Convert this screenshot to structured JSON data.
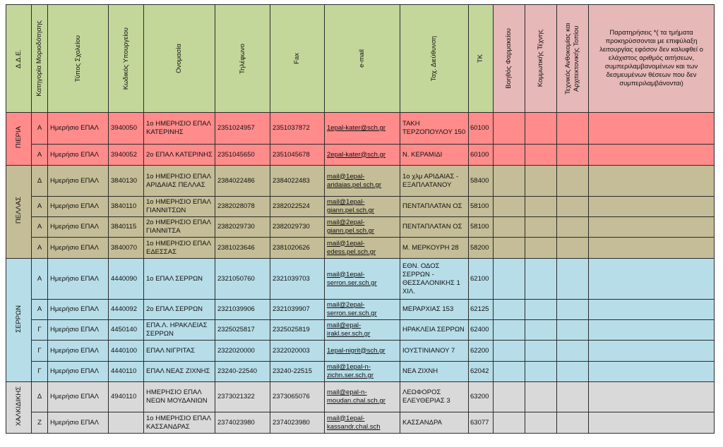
{
  "headers": {
    "dde": "Δ.Δ.Ε.",
    "category": "Κατηγορία Μοριοδότησης",
    "school_type": "Τύπος Σχολείου",
    "ministry_code": "Κωδικός Υπουργείου",
    "name": "Ονομασία",
    "phone": "Τηλέφωνο",
    "fax": "Fax",
    "email": "e-mail",
    "address": "Ταχ. Διεύθυνση",
    "tk": "ΤΚ",
    "pharmacy_assistant": "Βοηθός Φαρμακείου",
    "hair_styling": "Κομμωτικής Τέχνης",
    "landscape": "Τεχνικός Ανθοκομίας και Αρχιτεκτονικής Τοπίου",
    "remarks": "Παρατηρήσεις *( τα τμήματα προκηρύσσονται με επιφύλαξη λειτουργίας εφόσον δεν καλυφθεί ο ελάχιστος αριθμός αιτήσεων, συμπεριλαμβανομένων και των δεσμευμένων θέσεων που δεν συμπεριλαμβάνονται)"
  },
  "groups": [
    {
      "region": "ΠΙΕΡΙΑ",
      "rows": [
        {
          "category": "Α",
          "school_type": "Ημερήσιο ΕΠΑΛ",
          "code": "3940050",
          "name": "1ο ΗΜΕΡΗΣΙΟ ΕΠΑΛ ΚΑΤΕΡΙΝΗΣ",
          "phone": "2351024957",
          "fax": "2351037872",
          "email": "1epal-kater@sch.gr",
          "address": "ΤΑΚΗ ΤΕΡΖΟΠΟΥΛΟΥ 150",
          "tk": "60100"
        },
        {
          "category": "Α",
          "school_type": "Ημερήσιο ΕΠΑΛ",
          "code": "3940052",
          "name": "2ο ΕΠΑΛ ΚΑΤΕΡΙΝΗΣ",
          "phone": "2351045650",
          "fax": "2351045678",
          "email": "2epal-kater@sch.gr",
          "address": "Ν. ΚΕΡΑΜΙΔΙ",
          "tk": "60100"
        }
      ]
    },
    {
      "region": "ΠΕΛΛΑΣ",
      "rows": [
        {
          "category": "Δ",
          "school_type": "Ημερήσιο ΕΠΑΛ",
          "code": "3840130",
          "name": "1ο ΗΜΕΡΗΣΙΟ ΕΠΑΛ ΑΡΙΔΑΙΑΣ ΠΕΛΛΑΣ",
          "phone": "2384022486",
          "fax": "2384022483",
          "email": "mail@1epal-aridaias.pel.sch.gr",
          "address": "1ο χλμ ΑΡΙΔΑΙΑΣ - ΕΞΑΠΛΑΤΑΝΟΥ",
          "tk": "58400"
        },
        {
          "category": "Α",
          "school_type": "Ημερήσιο ΕΠΑΛ",
          "code": "3840110",
          "name": "1ο ΗΜΕΡΗΣΙΟ ΕΠΑΛ ΓΙΑΝΝΙΤΣΩΝ",
          "phone": "2382028078",
          "fax": "2382022524",
          "email": "mail@1epal-giann.pel.sch.gr",
          "address": "ΠΕΝΤΑΠΛΑΤΑΝ ΟΣ",
          "tk": "58100"
        },
        {
          "category": "Α",
          "school_type": "Ημερήσιο ΕΠΑΛ",
          "code": "3840115",
          "name": "2ο ΗΜΕΡΗΣΙΟ ΕΠΑΛ ΓΙΑΝΝΙΤΣΑ",
          "phone": "2382029730",
          "fax": "2382029730",
          "email": "mail@2epal-giann.pel.sch.gr",
          "address": "ΠΕΝΤΑΠΛΑΤΑΝ ΟΣ",
          "tk": "58100"
        },
        {
          "category": "Α",
          "school_type": "Ημερήσιο ΕΠΑΛ",
          "code": "3840070",
          "name": "1ο ΗΜΕΡΗΣΙΟ ΕΠΑΛ ΕΔΕΣΣΑΣ",
          "phone": "2381023646",
          "fax": "2381020626",
          "email": "mail@1epal-edess.pel.sch.gr",
          "address": "Μ. ΜΕΡΚΟΥΡΗ 28",
          "tk": "58200"
        }
      ]
    },
    {
      "region": "ΣΕΡΡΩΝ",
      "rows": [
        {
          "category": "Α",
          "school_type": "Ημερήσιο ΕΠΑΛ",
          "code": "4440090",
          "name": "1ο ΕΠΑΛ ΣΕΡΡΩΝ",
          "phone": "2321050760",
          "fax": "2321039703",
          "email": "mail@1epal-serron.ser.sch.gr",
          "address": "ΕΘΝ. ΟΔΟΣ ΣΕΡΡΩΝ - ΘΕΣΣΑΛΟΝΙΚΗΣ 1 ΧΙΛ.",
          "tk": "62100"
        },
        {
          "category": "Α",
          "school_type": "Ημερήσιο ΕΠΑΛ",
          "code": "4440092",
          "name": "2ο ΕΠΑΛ ΣΕΡΡΩΝ",
          "phone": "2321039906",
          "fax": "2321039907",
          "email": "mail@2epal-serron.ser.sch.gr",
          "address": "ΜΕΡΑΡΧΙΑΣ 153",
          "tk": "62125"
        },
        {
          "category": "Γ",
          "school_type": "Ημερήσιο ΕΠΑΛ",
          "code": "4450140",
          "name": "ΕΠΑ.Λ. ΗΡΑΚΛΕΙΑΣ ΣΕΡΡΩΝ",
          "phone": "2325025817",
          "fax": "2325025819",
          "email": "mail@epal-irakl.ser.sch.gr",
          "address": "ΗΡΑΚΛΕΙΑ ΣΕΡΡΩΝ",
          "tk": "62400"
        },
        {
          "category": "Γ",
          "school_type": "Ημερήσιο ΕΠΑΛ",
          "code": "4440100",
          "name": "ΕΠΑΛ ΝΙΓΡΙΤΑΣ",
          "phone": "2322020000",
          "fax": "2322020003",
          "email": "1epal-nigrit@sch.gr",
          "address": "ΙΟΥΣΤΙΝΙΑΝΟΥ 7",
          "tk": "62200"
        },
        {
          "category": "Γ",
          "school_type": "Ημερήσιο ΕΠΑΛ",
          "code": "4440110",
          "name": "ΕΠΑΛ ΝΕΑΣ ΖΙΧΝΗΣ",
          "phone": "23240-22540",
          "fax": "23240-22515",
          "email": "mail@1epal-n-zichn.ser.sch.gr",
          "address": "ΝΕΑ ΖΙΧΝΗ",
          "tk": "62042"
        }
      ]
    },
    {
      "region": "ΧΑΛΚΙΔΙΚΗΣ",
      "rows": [
        {
          "category": "Δ",
          "school_type": "Ημερήσιο ΕΠΑΛ",
          "code": "4940110",
          "name": "ΗΜΕΡΗΣΙΟ ΕΠΑΛ ΝΕΩΝ ΜΟΥΔΑΝΙΩΝ",
          "phone": "2373021322",
          "fax": "2373065076",
          "email": "mail@epal-n-moudan.chal.sch.gr",
          "address": "ΛΕΩΦΟΡΟΣ ΕΛΕΥΘΕΡΙΑΣ 3",
          "tk": "63200"
        },
        {
          "category": "Ζ",
          "school_type": "Ημερήσιο ΕΠΑΛ",
          "code": "",
          "name": "1ο ΗΜΕΡΗΣΙΟ ΕΠΑΛ ΚΑΣΣΑΝΔΡΑΣ",
          "phone": "2374023980",
          "fax": "2374023980",
          "email": "mail@1epal-kassandr.chal.sch",
          "address": "ΚΑΣΣΑΝΔΡΑ",
          "tk": "63077"
        }
      ]
    }
  ],
  "colors": {
    "header_green": "#c4d79b",
    "header_pink": "#e6b8b7",
    "pieria": "#ff8b8b",
    "pellas": "#c4bd97",
    "serron": "#b7dde8",
    "chalkidiki": "#d9d9d9",
    "email_link": "#1f23c9"
  }
}
